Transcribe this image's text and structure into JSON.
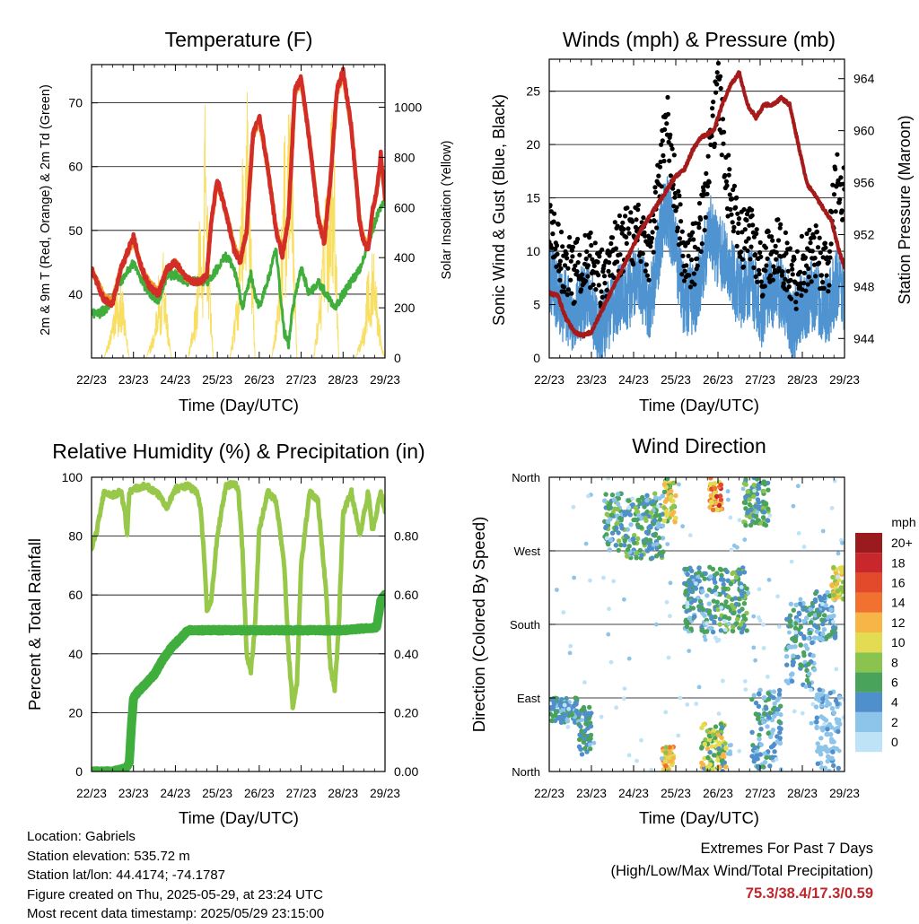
{
  "x_tick_labels": [
    "22/23",
    "23/23",
    "24/23",
    "25/23",
    "26/23",
    "27/23",
    "28/23",
    "29/23"
  ],
  "panels": {
    "temperature": {
      "title": "Temperature (F)",
      "xlabel": "Time (Day/UTC)",
      "ylabel_left": "2m & 9m T (Red, Orange) & 2m Td (Green)",
      "ylabel_right": "Solar Insolation (Yellow)",
      "yticks_left": [
        "40",
        "50",
        "60",
        "70"
      ],
      "yticks_right": [
        "0",
        "200",
        "400",
        "600",
        "800",
        "1000"
      ]
    },
    "winds": {
      "title": "Winds (mph) & Pressure (mb)",
      "xlabel": "Time (Day/UTC)",
      "ylabel_left": "Sonic Wind & Gust (Blue, Black)",
      "ylabel_right": "Station Pressure (Maroon)",
      "yticks_left": [
        "0",
        "5",
        "10",
        "15",
        "20",
        "25"
      ],
      "yticks_right": [
        "944",
        "948",
        "952",
        "956",
        "960",
        "964"
      ]
    },
    "humidity": {
      "title": "Relative Humidity (%) & Precipitation (in)",
      "xlabel": "Time (Day/UTC)",
      "ylabel_left": "Percent & Total Rainfall",
      "yticks_left": [
        "0",
        "20",
        "40",
        "60",
        "80",
        "100"
      ],
      "yticks_right": [
        "0.00",
        "0.20",
        "0.40",
        "0.60",
        "0.80"
      ]
    },
    "direction": {
      "title": "Wind Direction",
      "xlabel": "Time (Day/UTC)",
      "ylabel_left": "Direction (Colored By Speed)",
      "yticks_left": [
        "North",
        "East",
        "South",
        "West",
        "North"
      ],
      "legend_title": "mph",
      "legend_labels": [
        "0",
        "2",
        "4",
        "6",
        "8",
        "10",
        "12",
        "14",
        "16",
        "18",
        "20+"
      ],
      "legend_colors": [
        "#bfe3f6",
        "#8cc4ea",
        "#4f8fcb",
        "#4aa35a",
        "#8ac44e",
        "#e3dc52",
        "#f7b547",
        "#f1712f",
        "#e34a2c",
        "#c8282b",
        "#9a1b1e"
      ]
    }
  },
  "colors": {
    "temp_2m": "#d22d27",
    "temp_9m": "#f39a2e",
    "dewpoint": "#3fae3c",
    "solar": "#f8df64",
    "wind": "#4f94d0",
    "gust": "#000000",
    "pressure": "#a51b1b",
    "rh": "#97c84a",
    "precip": "#3fae3c"
  },
  "footer": {
    "location": "Location: Gabriels",
    "elevation": "Station elevation: 535.72 m",
    "latlon": "Station lat/lon: 44.4174; -74.1787",
    "created": "Figure created on Thu, 2025-05-29, at 23:24 UTC",
    "recent": "Most recent data timestamp: 2025/05/29 23:15:00"
  },
  "extremes": {
    "title": "Extremes For Past 7 Days",
    "subtitle": "(High/Low/Max Wind/Total Precipitation)",
    "values": "75.3/38.4/17.3/0.59"
  },
  "chart_data": [
    {
      "type": "line",
      "panel": "temperature",
      "x_unit": "day",
      "xlim": [
        22,
        29
      ],
      "ylim": [
        30,
        76
      ],
      "y2lim": [
        0,
        1170
      ],
      "series": [
        {
          "name": "2m T",
          "axis": "left",
          "x": [
            22.0,
            22.3,
            22.5,
            22.7,
            23.0,
            23.2,
            23.4,
            23.6,
            23.8,
            24.0,
            24.2,
            24.4,
            24.6,
            24.75,
            24.85,
            25.0,
            25.2,
            25.4,
            25.55,
            25.7,
            25.85,
            26.0,
            26.2,
            26.4,
            26.55,
            26.7,
            26.85,
            27.0,
            27.2,
            27.4,
            27.55,
            27.7,
            27.85,
            28.0,
            28.2,
            28.4,
            28.5,
            28.6,
            28.7,
            28.8,
            28.9,
            29.0
          ],
          "y": [
            44,
            39,
            38.5,
            44,
            49,
            44,
            41,
            40,
            44,
            45,
            43,
            42,
            42,
            43,
            51,
            58,
            53,
            47,
            45,
            50,
            65,
            68,
            60,
            50,
            46,
            52,
            72,
            74,
            64,
            52,
            48,
            58,
            72,
            75,
            66,
            51,
            48,
            47,
            53,
            56,
            62,
            55
          ]
        },
        {
          "name": "9m T",
          "axis": "left",
          "x": [
            22.0,
            22.3,
            22.5,
            22.7,
            23.0,
            23.2,
            23.4,
            23.6,
            23.8,
            24.0,
            24.2,
            24.4,
            24.6,
            24.75,
            24.85,
            25.0,
            25.2,
            25.4,
            25.55,
            25.7,
            25.85,
            26.0,
            26.2,
            26.4,
            26.55,
            26.7,
            26.85,
            27.0,
            27.2,
            27.4,
            27.55,
            27.7,
            27.85,
            28.0,
            28.2,
            28.4,
            28.5,
            28.6,
            28.7,
            28.8,
            28.9,
            29.0
          ],
          "y": [
            44,
            39.5,
            39,
            44,
            48.5,
            44,
            41.5,
            40.5,
            44,
            45,
            43,
            42,
            42,
            43,
            51,
            57.5,
            53,
            47.5,
            45.5,
            50,
            64.5,
            67.5,
            60,
            50.5,
            46.5,
            52,
            71.5,
            73.5,
            64,
            52.5,
            48.5,
            58,
            71.5,
            74.5,
            66,
            51.5,
            48.5,
            47.5,
            53,
            56,
            61.5,
            55
          ]
        },
        {
          "name": "2m Td",
          "axis": "left",
          "x": [
            22.0,
            22.2,
            22.4,
            22.6,
            22.8,
            23.0,
            23.2,
            23.4,
            23.6,
            23.8,
            24.0,
            24.3,
            24.6,
            24.8,
            25.0,
            25.2,
            25.4,
            25.6,
            25.8,
            25.9,
            26.0,
            26.2,
            26.4,
            26.5,
            26.6,
            26.7,
            26.8,
            27.0,
            27.2,
            27.4,
            27.6,
            27.8,
            28.0,
            28.2,
            28.4,
            28.6,
            28.8,
            29.0
          ],
          "y": [
            37,
            37,
            38,
            41,
            43,
            45,
            42,
            40,
            39,
            43,
            43,
            42,
            42,
            42,
            44,
            46,
            44,
            38,
            43,
            40,
            38,
            42,
            47,
            40,
            34,
            32,
            38,
            44,
            40,
            42,
            40,
            38,
            40,
            42,
            44,
            48,
            52,
            55
          ]
        },
        {
          "name": "Solar Insolation",
          "axis": "right",
          "x": [
            22.0,
            22.3,
            22.5,
            22.6,
            22.65,
            22.7,
            22.8,
            22.9,
            23.3,
            23.5,
            23.6,
            23.65,
            23.7,
            23.8,
            23.9,
            24.3,
            24.5,
            24.6,
            24.65,
            24.7,
            24.8,
            24.9,
            25.3,
            25.5,
            25.6,
            25.65,
            25.7,
            25.8,
            25.9,
            26.3,
            26.5,
            26.6,
            26.65,
            26.7,
            26.8,
            26.9,
            27.3,
            27.5,
            27.6,
            27.65,
            27.7,
            27.8,
            27.9,
            28.3,
            28.5,
            28.6,
            28.65,
            28.7,
            28.8,
            28.9,
            29.0
          ],
          "y": [
            0,
            0,
            150,
            320,
            200,
            350,
            160,
            0,
            0,
            120,
            350,
            180,
            500,
            200,
            0,
            0,
            250,
            700,
            300,
            1050,
            450,
            0,
            0,
            300,
            900,
            500,
            1170,
            650,
            0,
            0,
            350,
            1000,
            600,
            1170,
            700,
            0,
            0,
            400,
            900,
            500,
            1150,
            800,
            0,
            0,
            150,
            400,
            200,
            500,
            300,
            80,
            0
          ]
        }
      ]
    },
    {
      "type": "line",
      "panel": "winds",
      "x_unit": "day",
      "xlim": [
        22,
        29
      ],
      "ylim": [
        0,
        28
      ],
      "y2lim": [
        942.5,
        965.5
      ],
      "series": [
        {
          "name": "Sonic Wind",
          "axis": "left",
          "x": [
            22.0,
            22.3,
            22.6,
            22.9,
            23.2,
            23.5,
            23.8,
            24.1,
            24.4,
            24.7,
            24.8,
            25.0,
            25.2,
            25.5,
            25.8,
            26.0,
            26.2,
            26.5,
            26.8,
            27.0,
            27.2,
            27.5,
            27.8,
            28.0,
            28.3,
            28.6,
            28.8,
            29.0
          ],
          "y": [
            8,
            5,
            4,
            6,
            2,
            5,
            6,
            7,
            5,
            13,
            14,
            10,
            5,
            6,
            12,
            10,
            9,
            6,
            7,
            4,
            6,
            6,
            3,
            5,
            6,
            4,
            7,
            6
          ]
        },
        {
          "name": "Gust",
          "axis": "left",
          "x": [
            22.0,
            22.3,
            22.6,
            22.9,
            23.2,
            23.5,
            23.8,
            24.1,
            24.4,
            24.7,
            24.8,
            25.0,
            25.2,
            25.5,
            25.8,
            26.0,
            26.2,
            26.5,
            26.8,
            27.0,
            27.2,
            27.5,
            27.8,
            28.0,
            28.3,
            28.6,
            28.8,
            29.0
          ],
          "y": [
            12,
            9,
            8,
            10,
            7,
            10,
            11,
            12,
            10,
            20,
            22,
            15,
            9,
            10,
            18,
            26,
            17,
            11,
            12,
            8,
            10,
            10,
            7,
            9,
            10,
            8,
            17,
            15
          ]
        },
        {
          "name": "Station Pressure",
          "axis": "right",
          "x": [
            22.0,
            22.2,
            22.4,
            22.6,
            22.8,
            23.0,
            23.3,
            23.6,
            23.9,
            24.2,
            24.5,
            24.8,
            25.0,
            25.2,
            25.4,
            25.6,
            25.9,
            26.1,
            26.3,
            26.5,
            26.7,
            26.9,
            27.1,
            27.3,
            27.5,
            27.7,
            27.9,
            28.1,
            28.3,
            28.5,
            28.7,
            28.85,
            29.0
          ],
          "y": [
            947.5,
            947.3,
            945.5,
            944.5,
            944.2,
            944.5,
            946.5,
            948.5,
            950.5,
            952.5,
            954,
            955.5,
            956.5,
            957,
            958.5,
            959.5,
            960,
            962,
            963.5,
            964.5,
            962,
            961,
            962,
            962,
            962.5,
            962,
            959,
            956,
            955,
            954,
            953,
            951,
            949.5
          ]
        }
      ]
    },
    {
      "type": "line",
      "panel": "humidity",
      "x_unit": "day",
      "xlim": [
        22,
        29
      ],
      "ylim": [
        0,
        100
      ],
      "y2lim": [
        0,
        1.0
      ],
      "series": [
        {
          "name": "Relative Humidity",
          "axis": "left",
          "x": [
            22.0,
            22.1,
            22.3,
            22.5,
            22.7,
            22.8,
            22.85,
            22.9,
            23.0,
            23.3,
            23.6,
            23.8,
            24.0,
            24.3,
            24.5,
            24.6,
            24.7,
            24.75,
            24.85,
            25.0,
            25.2,
            25.4,
            25.5,
            25.6,
            25.7,
            25.8,
            25.9,
            26.0,
            26.2,
            26.4,
            26.6,
            26.7,
            26.8,
            26.9,
            27.0,
            27.2,
            27.4,
            27.6,
            27.7,
            27.8,
            27.9,
            28.0,
            28.2,
            28.4,
            28.6,
            28.7,
            28.8,
            28.9,
            29.0
          ],
          "y": [
            76,
            80,
            95,
            94,
            95,
            88,
            80,
            95,
            96,
            97,
            94,
            90,
            96,
            97,
            95,
            90,
            70,
            55,
            58,
            80,
            97,
            98,
            96,
            75,
            40,
            34,
            50,
            82,
            95,
            92,
            70,
            40,
            22,
            30,
            70,
            95,
            92,
            60,
            35,
            28,
            50,
            88,
            95,
            80,
            95,
            82,
            88,
            95,
            88
          ]
        },
        {
          "name": "Total Precipitation",
          "axis": "right",
          "x": [
            22.0,
            22.5,
            22.8,
            22.9,
            22.95,
            23.0,
            23.1,
            23.3,
            23.5,
            23.7,
            23.9,
            24.1,
            24.3,
            24.5,
            25.0,
            26.0,
            27.0,
            28.0,
            28.8,
            28.9,
            29.0
          ],
          "y": [
            0.0,
            0.0,
            0.01,
            0.03,
            0.15,
            0.25,
            0.27,
            0.3,
            0.33,
            0.38,
            0.42,
            0.45,
            0.48,
            0.48,
            0.48,
            0.48,
            0.48,
            0.48,
            0.49,
            0.58,
            0.6
          ]
        }
      ]
    },
    {
      "type": "scatter",
      "panel": "direction",
      "x_unit": "day",
      "xlim": [
        22,
        29
      ],
      "ylim": [
        0,
        360
      ],
      "clusters": [
        {
          "x": [
            22.0,
            22.7
          ],
          "y": [
            60,
            90
          ],
          "speed": [
            2,
            6
          ]
        },
        {
          "x": [
            22.7,
            23.0
          ],
          "y": [
            80,
            20
          ],
          "speed": [
            3,
            7
          ]
        },
        {
          "x": [
            23.3,
            24.7
          ],
          "y": [
            260,
            340
          ],
          "speed": [
            2,
            8
          ]
        },
        {
          "x": [
            24.7,
            25.0
          ],
          "y": [
            305,
            360
          ],
          "speed": [
            5,
            13
          ]
        },
        {
          "x": [
            24.7,
            24.95
          ],
          "y": [
            0,
            30
          ],
          "speed": [
            8,
            14
          ]
        },
        {
          "x": [
            25.8,
            26.1
          ],
          "y": [
            320,
            360
          ],
          "speed": [
            10,
            18
          ]
        },
        {
          "x": [
            25.6,
            26.2
          ],
          "y": [
            0,
            60
          ],
          "speed": [
            4,
            12
          ]
        },
        {
          "x": [
            25.2,
            26.0
          ],
          "y": [
            170,
            250
          ],
          "speed": [
            2,
            7
          ]
        },
        {
          "x": [
            26.0,
            26.7
          ],
          "y": [
            170,
            250
          ],
          "speed": [
            3,
            8
          ]
        },
        {
          "x": [
            26.6,
            27.2
          ],
          "y": [
            300,
            360
          ],
          "speed": [
            3,
            9
          ]
        },
        {
          "x": [
            26.8,
            27.5
          ],
          "y": [
            0,
            100
          ],
          "speed": [
            1,
            6
          ]
        },
        {
          "x": [
            27.6,
            28.3
          ],
          "y": [
            100,
            210
          ],
          "speed": [
            1,
            7
          ]
        },
        {
          "x": [
            28.3,
            28.8
          ],
          "y": [
            160,
            220
          ],
          "speed": [
            2,
            6
          ]
        },
        {
          "x": [
            28.7,
            29.0
          ],
          "y": [
            210,
            250
          ],
          "speed": [
            8,
            12
          ]
        },
        {
          "x": [
            28.3,
            28.9
          ],
          "y": [
            0,
            100
          ],
          "speed": [
            1,
            4
          ]
        }
      ]
    }
  ]
}
